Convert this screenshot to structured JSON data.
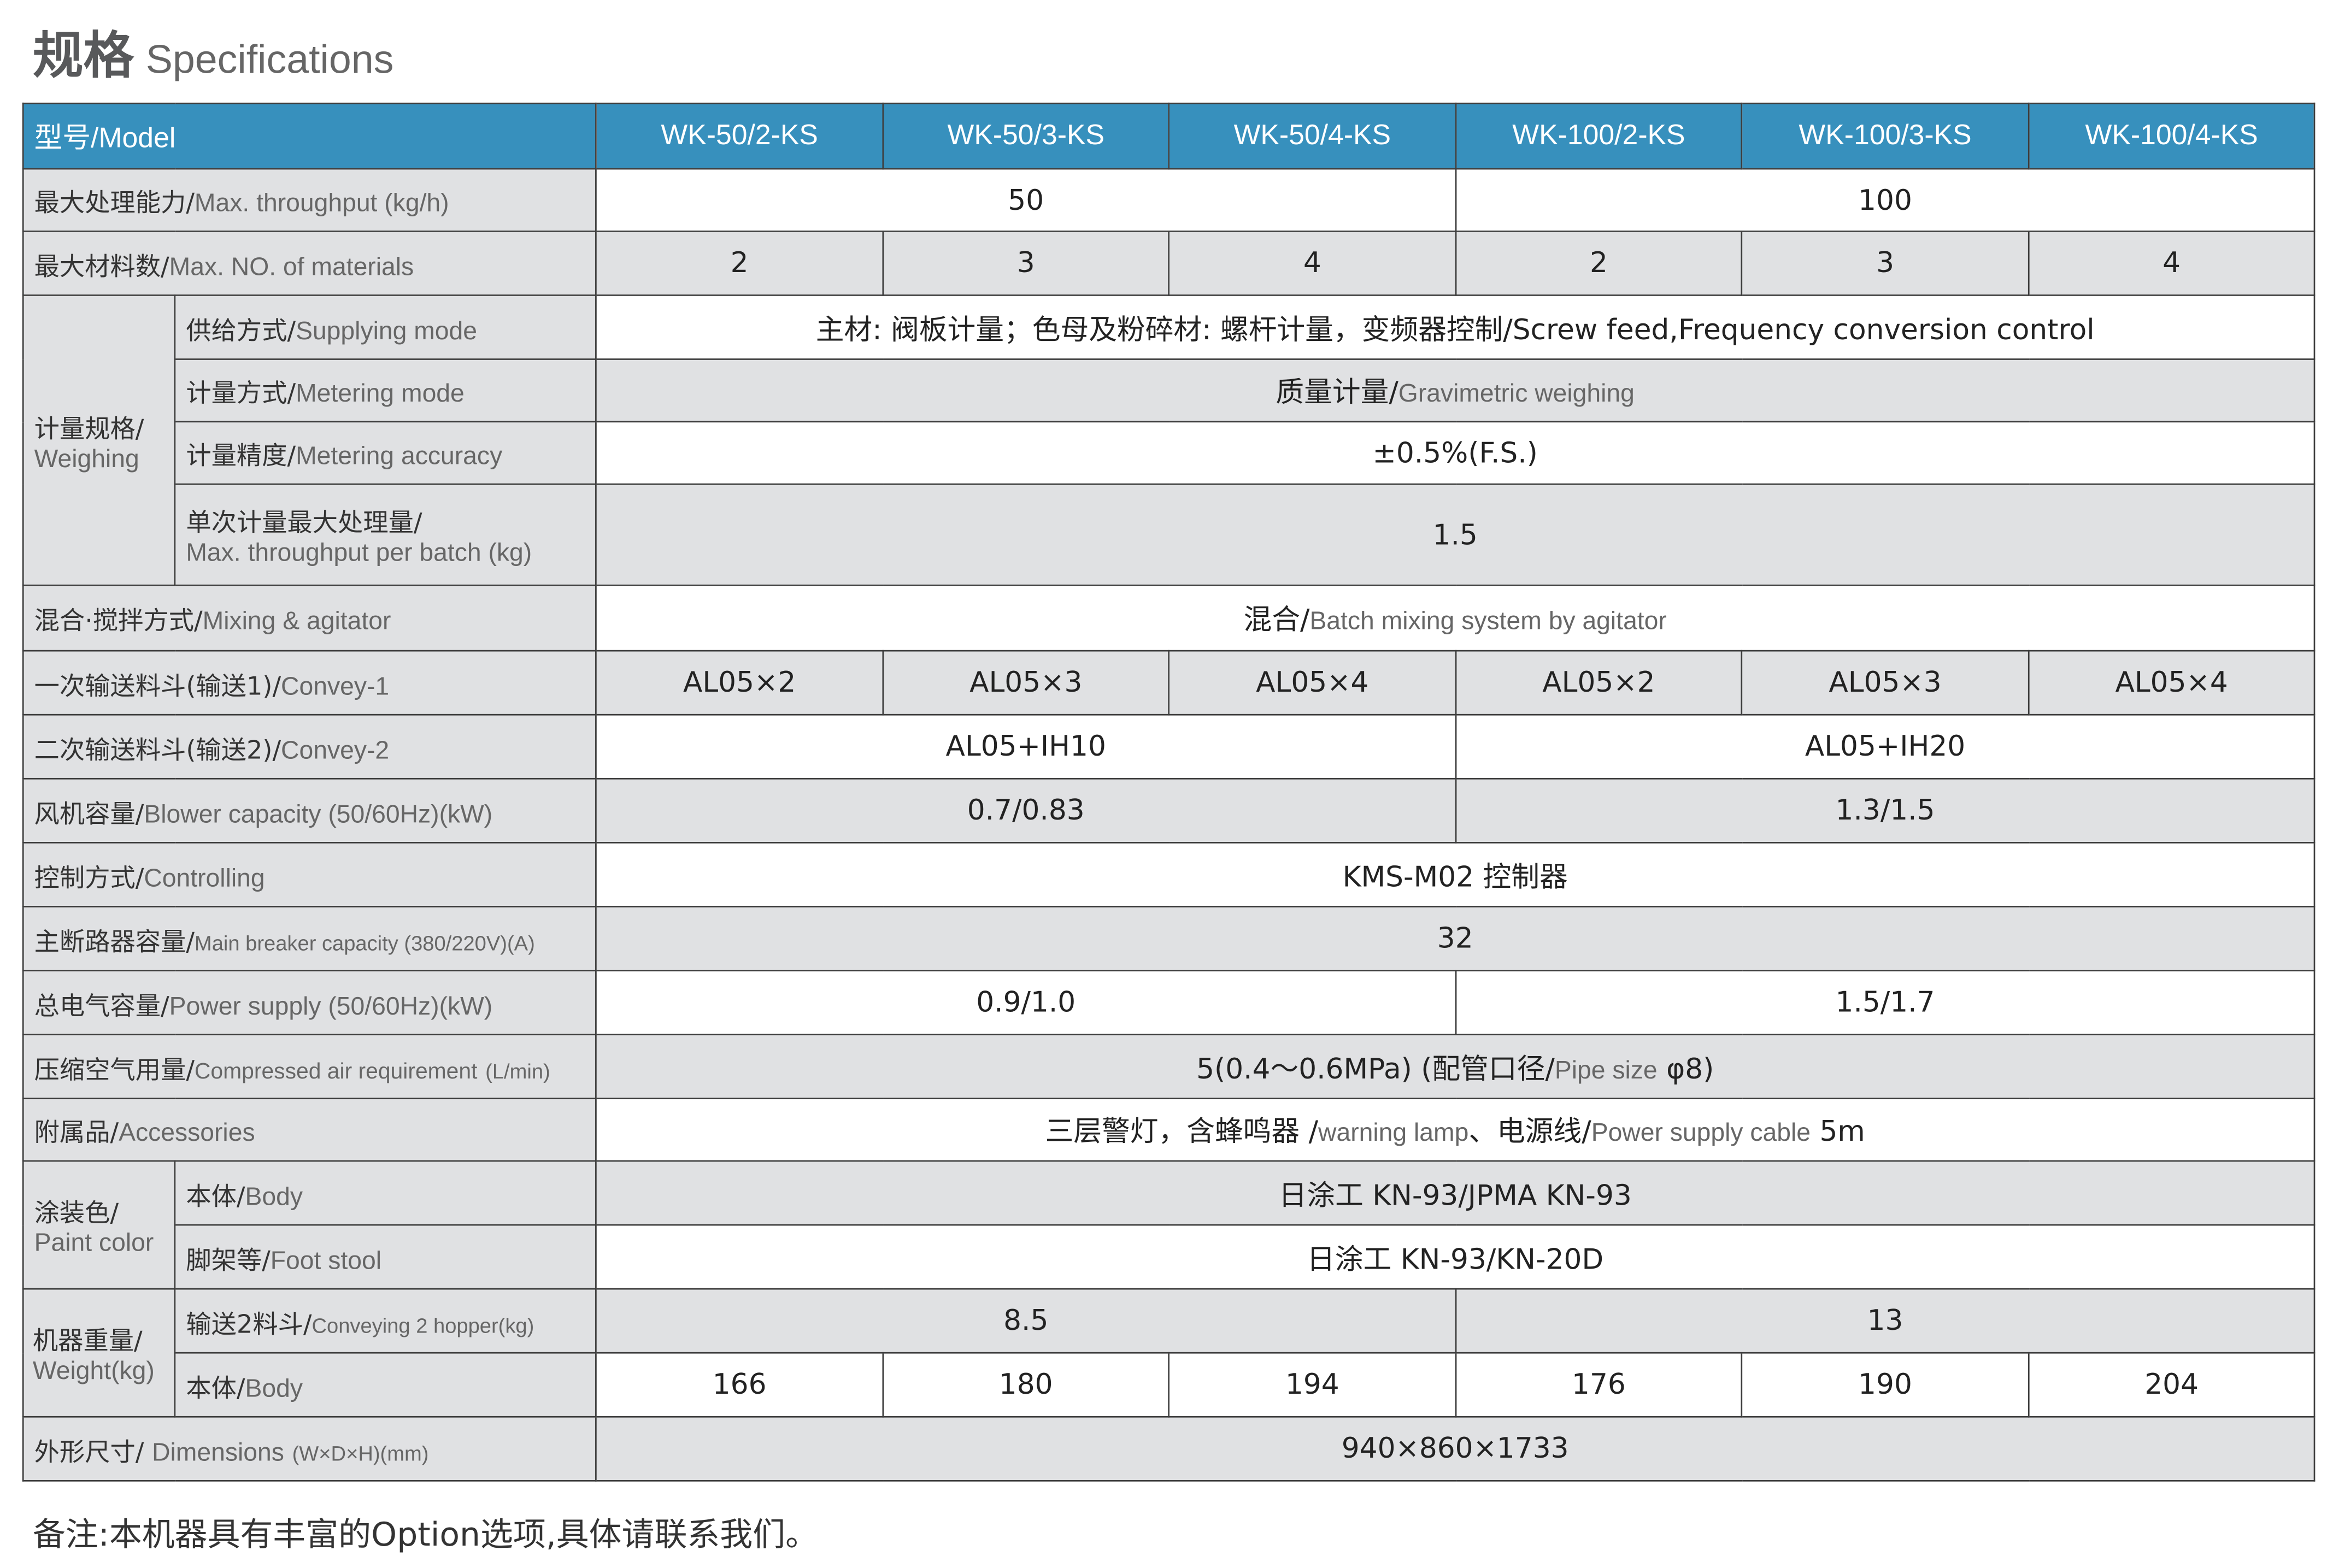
{
  "title": {
    "cn": "规格",
    "en": "Specifications"
  },
  "header": {
    "label": "型号/Model",
    "models": [
      "WK-50/2-KS",
      "WK-50/3-KS",
      "WK-50/4-KS",
      "WK-100/2-KS",
      "WK-100/3-KS",
      "WK-100/4-KS"
    ]
  },
  "rows": {
    "throughput": {
      "cn": "最大处理能力/",
      "en": "Max. throughput (kg/h)",
      "values": [
        "50",
        "100"
      ]
    },
    "materials": {
      "cn": "最大材料数/",
      "en": "Max. NO. of materials",
      "values": [
        "2",
        "3",
        "4",
        "2",
        "3",
        "4"
      ]
    },
    "weighing": {
      "cn": "计量规格/",
      "en": "Weighing"
    },
    "supplying": {
      "cn": "供给方式/",
      "en": "Supplying mode",
      "value": "主材: 阀板计量；色母及粉碎材: 螺杆计量，变频器控制/Screw feed,Frequency conversion control"
    },
    "metering": {
      "cn": "计量方式/",
      "en": "Metering mode",
      "value_cn": "质量计量/",
      "value_en": "Gravimetric weighing"
    },
    "accuracy": {
      "cn": "计量精度/",
      "en": "Metering accuracy",
      "value": "±0.5%(F.S.)"
    },
    "batch": {
      "cn": "单次计量最大处理量/",
      "en": "Max. throughput per batch (kg)",
      "value": "1.5"
    },
    "mixing": {
      "cn": "混合·搅拌方式/",
      "en": "Mixing & agitator",
      "value_cn": "混合/",
      "value_en": "Batch mixing system by agitator"
    },
    "convey1": {
      "cn": "一次输送料斗(输送1)/",
      "en": "Convey-1",
      "values": [
        "AL05×2",
        "AL05×3",
        "AL05×4",
        "AL05×2",
        "AL05×3",
        "AL05×4"
      ]
    },
    "convey2": {
      "cn": "二次输送料斗(输送2)/",
      "en": "Convey-2",
      "values": [
        "AL05+IH10",
        "AL05+IH20"
      ]
    },
    "blower": {
      "cn": "风机容量/",
      "en": "Blower capacity (50/60Hz)(kW)",
      "values": [
        "0.7/0.83",
        "1.3/1.5"
      ]
    },
    "controlling": {
      "cn": "控制方式/",
      "en": "Controlling",
      "value": "KMS-M02 控制器"
    },
    "breaker": {
      "cn": "主断路器容量/",
      "en": "Main breaker capacity (380/220V)(A)",
      "value": "32"
    },
    "power": {
      "cn": "总电气容量/",
      "en": "Power supply (50/60Hz)(kW)",
      "values": [
        "0.9/1.0",
        "1.5/1.7"
      ]
    },
    "air": {
      "cn": "压缩空气用量/",
      "en": "Compressed air requirement",
      "unit": "(L/min)",
      "value_a": "5(0.4～0.6MPa) (配管口径/",
      "value_en": "Pipe size",
      "value_b": " φ8)"
    },
    "accessories": {
      "cn": "附属品/",
      "en": "Accessories",
      "value_a": "三层警灯，含蜂鸣器 /",
      "value_en1": "warning lamp",
      "value_b": "、电源线/",
      "value_en2": "Power supply cable",
      "value_c": " 5m"
    },
    "paint": {
      "cn": "涂装色/",
      "en": "Paint color"
    },
    "paint_body": {
      "cn": "本体/",
      "en": "Body",
      "value": "日涂工 KN-93/JPMA KN-93"
    },
    "foot": {
      "cn": "脚架等/",
      "en": "Foot stool",
      "value": "日涂工 KN-93/KN-20D"
    },
    "weight": {
      "cn": "机器重量/",
      "en": "Weight(kg)"
    },
    "hopper": {
      "cn": "输送2料斗/",
      "en": "Conveying 2 hopper(kg)",
      "values": [
        "8.5",
        "13"
      ]
    },
    "weight_body": {
      "cn": "本体/",
      "en": "Body",
      "values": [
        "166",
        "180",
        "194",
        "176",
        "190",
        "204"
      ]
    },
    "dimensions": {
      "cn": "外形尺寸/",
      "en": "Dimensions",
      "unit": "(W×D×H)(mm)",
      "value": "940×860×1733"
    }
  },
  "colors": {
    "header": "#3790bd",
    "label_bg": "#e0e1e3",
    "border": "#3d3d3d"
  },
  "note": "备注:本机器具有丰富的Option选项,具体请联系我们。"
}
